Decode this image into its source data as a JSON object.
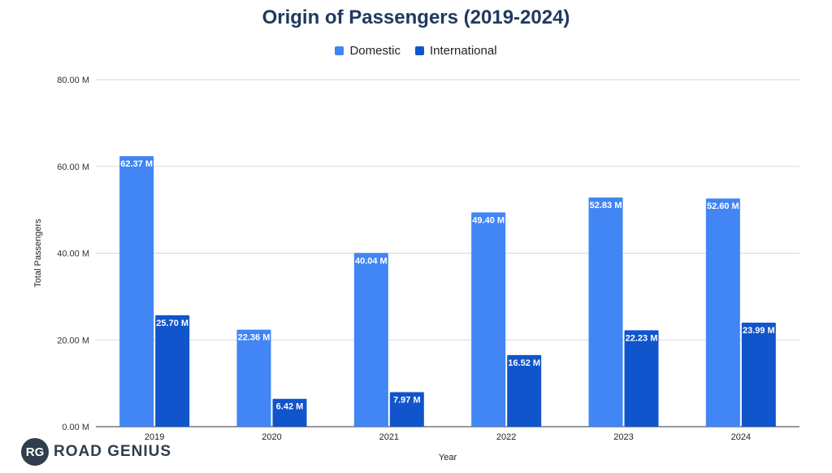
{
  "chart_data": {
    "type": "bar",
    "title": "Origin of Passengers (2019-2024)",
    "xlabel": "Year",
    "ylabel": "Total Passengers",
    "categories": [
      "2019",
      "2020",
      "2021",
      "2022",
      "2023",
      "2024"
    ],
    "series": [
      {
        "name": "Domestic",
        "color": "#4285f4",
        "values": [
          62.37,
          22.36,
          40.04,
          49.4,
          52.83,
          52.6
        ],
        "labels": [
          "62.37 M",
          "22.36 M",
          "40.04 M",
          "49.40 M",
          "52.83 M",
          "52.60 M"
        ]
      },
      {
        "name": "International",
        "color": "#1155cc",
        "values": [
          25.7,
          6.42,
          7.97,
          16.52,
          22.23,
          23.99
        ],
        "labels": [
          "25.70 M",
          "6.42 M",
          "7.97 M",
          "16.52 M",
          "22.23 M",
          "23.99 M"
        ]
      }
    ],
    "ylim": [
      0,
      80
    ],
    "yticks": [
      0,
      20,
      40,
      60,
      80
    ],
    "ytick_labels": [
      "0.00 M",
      "20.00 M",
      "40.00 M",
      "60.00 M",
      "80.00 M"
    ],
    "grid": true,
    "legend_position": "top-center"
  },
  "logo": {
    "badge": "RG",
    "text": "ROAD GENIUS"
  }
}
